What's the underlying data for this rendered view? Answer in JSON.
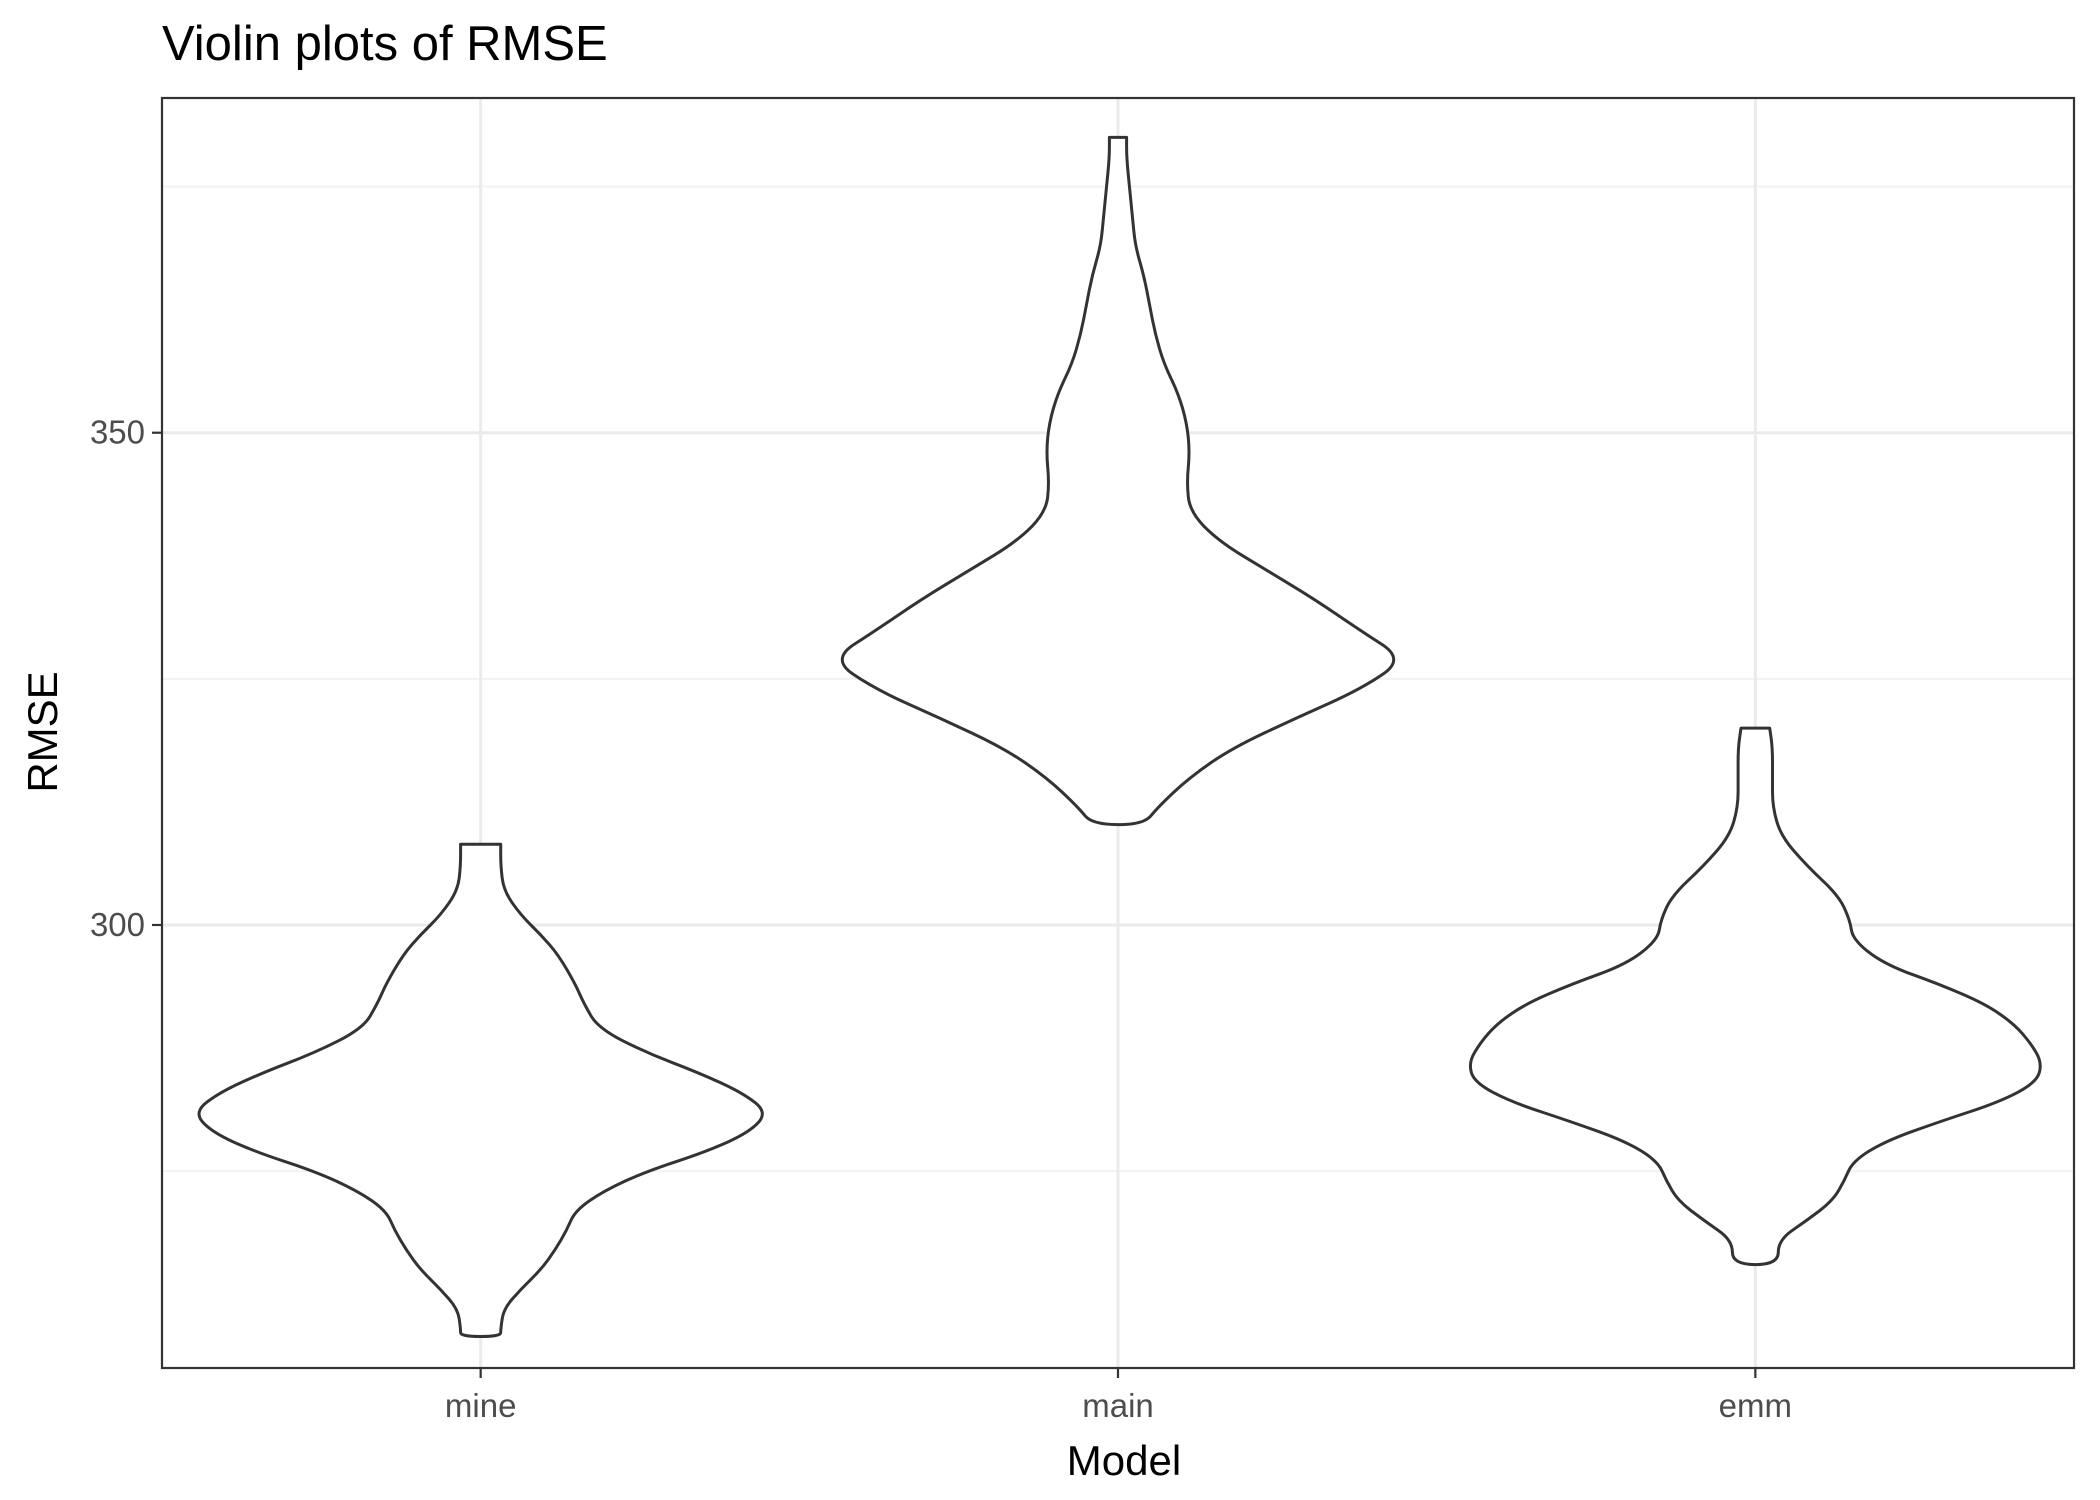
{
  "chart_data": {
    "type": "violin",
    "title": "Violin plots of RMSE",
    "xlabel": "Model",
    "ylabel": "RMSE",
    "categories": [
      "mine",
      "main",
      "emm"
    ],
    "y_ticks": [
      300,
      350
    ],
    "ylim": [
      255,
      384
    ],
    "grid": true,
    "colors": {
      "outline": "#333333",
      "fill": "#ffffff",
      "panel_border": "#333333",
      "grid_major": "#ebebeb",
      "grid_minor": "#f2f2f2",
      "tick_label": "#4d4d4d"
    },
    "series": [
      {
        "category": "mine",
        "profile": [
          [
            308.2,
            0.07
          ],
          [
            306.0,
            0.07
          ],
          [
            303.5,
            0.08
          ],
          [
            301.0,
            0.14
          ],
          [
            299.0,
            0.21
          ],
          [
            297.0,
            0.27
          ],
          [
            294.0,
            0.33
          ],
          [
            292.0,
            0.36
          ],
          [
            289.5,
            0.41
          ],
          [
            287.0,
            0.58
          ],
          [
            285.0,
            0.76
          ],
          [
            283.0,
            0.91
          ],
          [
            281.0,
            1.0
          ],
          [
            279.0,
            0.94
          ],
          [
            277.0,
            0.79
          ],
          [
            275.0,
            0.58
          ],
          [
            273.0,
            0.43
          ],
          [
            271.0,
            0.33
          ],
          [
            269.0,
            0.3
          ],
          [
            267.0,
            0.26
          ],
          [
            265.0,
            0.21
          ],
          [
            263.0,
            0.14
          ],
          [
            261.0,
            0.08
          ],
          [
            259.0,
            0.07
          ],
          [
            258.2,
            0.07
          ]
        ]
      },
      {
        "category": "main",
        "profile": [
          [
            380.0,
            0.03
          ],
          [
            378.0,
            0.03
          ],
          [
            375.0,
            0.04
          ],
          [
            372.0,
            0.05
          ],
          [
            369.0,
            0.06
          ],
          [
            366.0,
            0.09
          ],
          [
            363.0,
            0.11
          ],
          [
            360.0,
            0.13
          ],
          [
            357.0,
            0.16
          ],
          [
            354.0,
            0.21
          ],
          [
            351.0,
            0.24
          ],
          [
            348.0,
            0.25
          ],
          [
            345.0,
            0.24
          ],
          [
            342.0,
            0.25
          ],
          [
            339.0,
            0.35
          ],
          [
            336.0,
            0.52
          ],
          [
            333.0,
            0.69
          ],
          [
            330.0,
            0.84
          ],
          [
            327.0,
            1.0
          ],
          [
            324.0,
            0.85
          ],
          [
            321.0,
            0.62
          ],
          [
            318.0,
            0.4
          ],
          [
            315.0,
            0.25
          ],
          [
            312.0,
            0.14
          ],
          [
            310.2,
            0.09
          ]
        ]
      },
      {
        "category": "emm",
        "profile": [
          [
            320.0,
            0.05
          ],
          [
            318.0,
            0.06
          ],
          [
            315.0,
            0.06
          ],
          [
            312.0,
            0.06
          ],
          [
            309.0,
            0.09
          ],
          [
            306.0,
            0.18
          ],
          [
            303.0,
            0.29
          ],
          [
            300.5,
            0.33
          ],
          [
            298.5,
            0.34
          ],
          [
            296.0,
            0.45
          ],
          [
            294.0,
            0.64
          ],
          [
            292.0,
            0.8
          ],
          [
            290.0,
            0.9
          ],
          [
            288.0,
            0.96
          ],
          [
            286.0,
            1.0
          ],
          [
            284.0,
            0.98
          ],
          [
            282.0,
            0.85
          ],
          [
            280.0,
            0.64
          ],
          [
            278.0,
            0.45
          ],
          [
            276.0,
            0.34
          ],
          [
            274.0,
            0.31
          ],
          [
            272.0,
            0.27
          ],
          [
            270.0,
            0.18
          ],
          [
            268.0,
            0.08
          ],
          [
            265.5,
            0.08
          ]
        ]
      }
    ]
  }
}
